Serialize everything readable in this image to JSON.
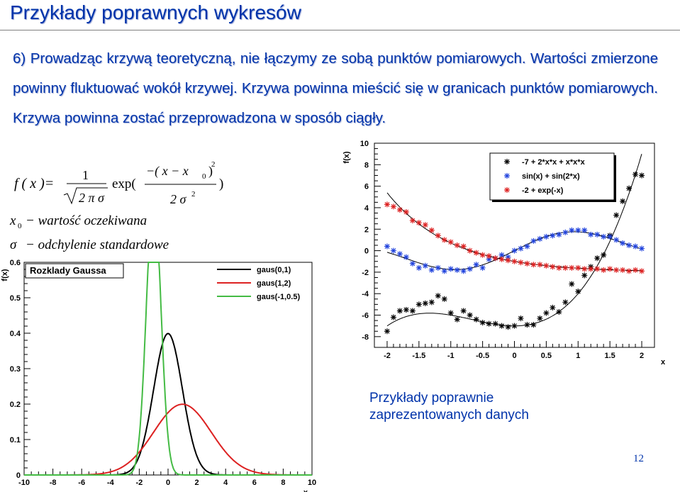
{
  "slide": {
    "title": "Przykłady poprawnych wykresów",
    "paragraph": "6) Prowadząc krzywą teoretyczną, nie łączymy ze sobą punktów pomiarowych. Wartości zmierzone powinny fluktuować wokół krzywej. Krzywa powinna mieścić się w granicach punktów pomiarowych. Krzywa powinna zostać przeprowadzona w sposób ciągły.",
    "caption_line1": "Przykłady poprawnie",
    "caption_line2": "zaprezentowanych danych",
    "page_number": "12"
  },
  "formula": {
    "lhs": "f ( x )=",
    "numerator_one": "1",
    "sqrt_content": "2 π σ",
    "exp": "exp(",
    "exp_num": "−( x − x",
    "sub0": "0",
    "sup2": "2",
    "close_paren": ")",
    "exp_den": "2 σ",
    "def1_sym": "x",
    "def1_text": "− wartość oczekiwana",
    "def2_sym": "σ",
    "def2_text": "− odchylenie standardowe"
  },
  "chart_data": [
    {
      "type": "line",
      "title": "Rozklady Gaussa",
      "xlabel": "x",
      "ylabel": "f(x)",
      "xlim": [
        -10,
        10
      ],
      "ylim": [
        0,
        0.6
      ],
      "x_ticks": [
        "-10",
        "-8",
        "-6",
        "-4",
        "-2",
        "0",
        "2",
        "4",
        "6",
        "8",
        "10"
      ],
      "y_ticks": [
        "0",
        "0.1",
        "0.2",
        "0.3",
        "0.4",
        "0.5",
        "0.6"
      ],
      "legend": "top-right",
      "series": [
        {
          "name": "gaus(0,1)",
          "mean": 0,
          "sigma": 1,
          "color": "#000000"
        },
        {
          "name": "gaus(1,2)",
          "mean": 1,
          "sigma": 2,
          "color": "#dd2222"
        },
        {
          "name": "gaus(-1,0.5)",
          "mean": -1,
          "sigma": 0.5,
          "color": "#44bb44"
        }
      ]
    },
    {
      "type": "scatter",
      "title": "",
      "xlabel": "x",
      "ylabel": "f(x)",
      "xlim": [
        -2.2,
        2.2
      ],
      "ylim": [
        -9,
        10
      ],
      "x_ticks": [
        "-2",
        "-1.5",
        "-1",
        "-0.5",
        "0",
        "0.5",
        "1",
        "1.5",
        "2"
      ],
      "y_ticks": [
        "-8",
        "-6",
        "-4",
        "-2",
        "0",
        "2",
        "4",
        "6",
        "8",
        "10"
      ],
      "legend": "top-right",
      "series": [
        {
          "name": "-7 + 2*x*x + x*x*x",
          "color": "#000000",
          "points": [
            [
              -2.0,
              -7.5
            ],
            [
              -1.9,
              -6.2
            ],
            [
              -1.8,
              -5.6
            ],
            [
              -1.7,
              -5.5
            ],
            [
              -1.6,
              -5.6
            ],
            [
              -1.5,
              -5.0
            ],
            [
              -1.4,
              -4.9
            ],
            [
              -1.3,
              -4.8
            ],
            [
              -1.2,
              -4.2
            ],
            [
              -1.1,
              -4.5
            ],
            [
              -1.0,
              -5.8
            ],
            [
              -0.9,
              -6.4
            ],
            [
              -0.8,
              -5.6
            ],
            [
              -0.7,
              -6.0
            ],
            [
              -0.6,
              -6.4
            ],
            [
              -0.5,
              -6.7
            ],
            [
              -0.4,
              -6.8
            ],
            [
              -0.3,
              -6.8
            ],
            [
              -0.2,
              -7.0
            ],
            [
              -0.1,
              -7.1
            ],
            [
              0.0,
              -7.0
            ],
            [
              0.1,
              -6.3
            ],
            [
              0.2,
              -6.9
            ],
            [
              0.3,
              -6.9
            ],
            [
              0.4,
              -6.3
            ],
            [
              0.5,
              -5.8
            ],
            [
              0.6,
              -5.3
            ],
            [
              0.7,
              -5.7
            ],
            [
              0.8,
              -4.8
            ],
            [
              0.9,
              -3.1
            ],
            [
              1.0,
              -3.8
            ],
            [
              1.1,
              -2.3
            ],
            [
              1.2,
              -1.5
            ],
            [
              1.3,
              -0.7
            ],
            [
              1.4,
              -0.4
            ],
            [
              1.5,
              1.4
            ],
            [
              1.6,
              3.3
            ],
            [
              1.7,
              4.6
            ],
            [
              1.8,
              5.8
            ],
            [
              1.9,
              7.1
            ],
            [
              2.0,
              7.0
            ]
          ]
        },
        {
          "name": "sin(x) + sin(2*x)",
          "color": "#2244dd",
          "points": [
            [
              -2.0,
              0.4
            ],
            [
              -1.9,
              0.0
            ],
            [
              -1.8,
              -0.3
            ],
            [
              -1.7,
              -0.6
            ],
            [
              -1.6,
              -1.2
            ],
            [
              -1.5,
              -1.6
            ],
            [
              -1.4,
              -1.4
            ],
            [
              -1.3,
              -1.8
            ],
            [
              -1.2,
              -1.6
            ],
            [
              -1.1,
              -1.9
            ],
            [
              -1.0,
              -1.7
            ],
            [
              -0.9,
              -1.8
            ],
            [
              -0.8,
              -1.9
            ],
            [
              -0.7,
              -1.7
            ],
            [
              -0.6,
              -1.3
            ],
            [
              -0.5,
              -1.6
            ],
            [
              -0.4,
              -0.8
            ],
            [
              -0.3,
              -0.7
            ],
            [
              -0.2,
              -0.4
            ],
            [
              -0.1,
              -0.6
            ],
            [
              0.0,
              0.0
            ],
            [
              0.1,
              0.2
            ],
            [
              0.2,
              0.4
            ],
            [
              0.3,
              0.9
            ],
            [
              0.4,
              1.1
            ],
            [
              0.5,
              1.3
            ],
            [
              0.6,
              1.4
            ],
            [
              0.7,
              1.5
            ],
            [
              0.8,
              1.7
            ],
            [
              0.9,
              1.9
            ],
            [
              1.0,
              1.9
            ],
            [
              1.1,
              1.9
            ],
            [
              1.2,
              1.5
            ],
            [
              1.3,
              1.5
            ],
            [
              1.4,
              1.3
            ],
            [
              1.5,
              1.3
            ],
            [
              1.6,
              1.0
            ],
            [
              1.7,
              0.7
            ],
            [
              1.8,
              0.5
            ],
            [
              1.9,
              0.4
            ],
            [
              2.0,
              0.2
            ]
          ]
        },
        {
          "name": "-2 + exp(-x)",
          "color": "#dd2222",
          "points": [
            [
              -2.0,
              4.3
            ],
            [
              -1.9,
              4.1
            ],
            [
              -1.8,
              3.8
            ],
            [
              -1.7,
              3.6
            ],
            [
              -1.6,
              2.8
            ],
            [
              -1.5,
              2.6
            ],
            [
              -1.4,
              2.4
            ],
            [
              -1.3,
              1.9
            ],
            [
              -1.2,
              1.4
            ],
            [
              -1.1,
              1.0
            ],
            [
              -1.0,
              0.8
            ],
            [
              -0.9,
              0.5
            ],
            [
              -0.8,
              0.4
            ],
            [
              -0.7,
              0.0
            ],
            [
              -0.6,
              -0.2
            ],
            [
              -0.5,
              -0.4
            ],
            [
              -0.4,
              -0.5
            ],
            [
              -0.3,
              -0.7
            ],
            [
              -0.2,
              -0.8
            ],
            [
              -0.1,
              -0.9
            ],
            [
              0.0,
              -1.0
            ],
            [
              0.1,
              -1.1
            ],
            [
              0.2,
              -1.2
            ],
            [
              0.3,
              -1.3
            ],
            [
              0.4,
              -1.3
            ],
            [
              0.5,
              -1.4
            ],
            [
              0.6,
              -1.5
            ],
            [
              0.7,
              -1.6
            ],
            [
              0.8,
              -1.6
            ],
            [
              0.9,
              -1.6
            ],
            [
              1.0,
              -1.6
            ],
            [
              1.1,
              -1.7
            ],
            [
              1.2,
              -1.7
            ],
            [
              1.3,
              -1.7
            ],
            [
              1.4,
              -1.8
            ],
            [
              1.5,
              -1.7
            ],
            [
              1.6,
              -1.8
            ],
            [
              1.7,
              -1.8
            ],
            [
              1.8,
              -1.9
            ],
            [
              1.9,
              -1.8
            ],
            [
              2.0,
              -1.9
            ]
          ]
        }
      ]
    }
  ]
}
